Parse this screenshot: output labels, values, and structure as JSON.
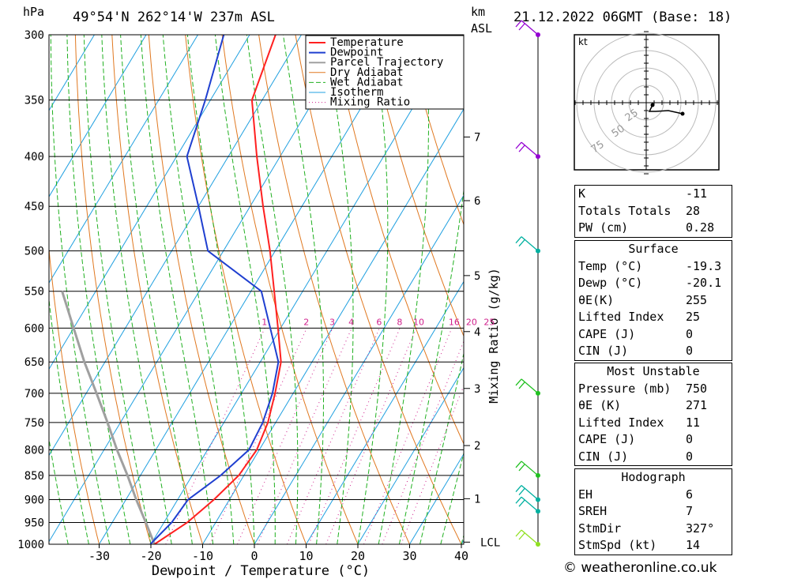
{
  "header": {
    "location": "49°54'N  262°14'W  237m  ASL",
    "datetime": "21.12.2022  06GMT  (Base: 18)",
    "pressure_unit": "hPa",
    "km_unit": "km",
    "asl_label": "ASL"
  },
  "chart_data": {
    "type": "skew-t",
    "xlabel": "Dewpoint / Temperature (°C)",
    "ylabel_right": "Mixing Ratio (g/kg)",
    "x_ticks": [
      -30,
      -20,
      -10,
      0,
      10,
      20,
      30,
      40
    ],
    "pressure_levels": [
      300,
      350,
      400,
      450,
      500,
      550,
      600,
      650,
      700,
      750,
      800,
      850,
      900,
      950,
      1000
    ],
    "km_ticks": [
      {
        "label": "7",
        "p": 382
      },
      {
        "label": "6",
        "p": 444
      },
      {
        "label": "5",
        "p": 530
      },
      {
        "label": "4",
        "p": 605
      },
      {
        "label": "3",
        "p": 692
      },
      {
        "label": "2",
        "p": 792
      },
      {
        "label": "1",
        "p": 898
      },
      {
        "label": "LCL",
        "p": 995
      }
    ],
    "mixing_ratio_labels": [
      "1",
      "2",
      "3",
      "4",
      "6",
      "8",
      "10",
      "16",
      "20",
      "25"
    ],
    "legend": [
      "Temperature",
      "Dewpoint",
      "Parcel Trajectory",
      "Dry Adiabat",
      "Wet Adiabat",
      "Isotherm",
      "Mixing Ratio"
    ],
    "temperature": [
      {
        "p": 1000,
        "t": -19.3
      },
      {
        "p": 950,
        "t": -15.5
      },
      {
        "p": 900,
        "t": -13.0
      },
      {
        "p": 850,
        "t": -11.0
      },
      {
        "p": 800,
        "t": -10.5
      },
      {
        "p": 750,
        "t": -11.5
      },
      {
        "p": 700,
        "t": -13.5
      },
      {
        "p": 650,
        "t": -16.0
      },
      {
        "p": 600,
        "t": -20.5
      },
      {
        "p": 550,
        "t": -25.5
      },
      {
        "p": 500,
        "t": -31.0
      },
      {
        "p": 450,
        "t": -37.5
      },
      {
        "p": 400,
        "t": -44.5
      },
      {
        "p": 350,
        "t": -52.0
      },
      {
        "p": 300,
        "t": -55.0
      }
    ],
    "dewpoint": [
      {
        "p": 1000,
        "t": -20.1
      },
      {
        "p": 950,
        "t": -18.5
      },
      {
        "p": 900,
        "t": -18.0
      },
      {
        "p": 850,
        "t": -14.5
      },
      {
        "p": 800,
        "t": -12.0
      },
      {
        "p": 750,
        "t": -12.5
      },
      {
        "p": 700,
        "t": -14.0
      },
      {
        "p": 650,
        "t": -16.5
      },
      {
        "p": 600,
        "t": -22.0
      },
      {
        "p": 550,
        "t": -28.0
      },
      {
        "p": 500,
        "t": -43.0
      },
      {
        "p": 450,
        "t": -50.0
      },
      {
        "p": 400,
        "t": -58.0
      },
      {
        "p": 350,
        "t": -61.0
      },
      {
        "p": 300,
        "t": -65.0
      }
    ],
    "parcel": [
      {
        "p": 1000,
        "t": -19.3
      },
      {
        "p": 950,
        "t": -23.5
      },
      {
        "p": 900,
        "t": -28.0
      },
      {
        "p": 850,
        "t": -32.5
      },
      {
        "p": 800,
        "t": -37.5
      },
      {
        "p": 750,
        "t": -42.5
      },
      {
        "p": 700,
        "t": -48.0
      },
      {
        "p": 650,
        "t": -54.0
      },
      {
        "p": 600,
        "t": -60.0
      },
      {
        "p": 550,
        "t": -66.5
      }
    ],
    "wind_barbs": [
      {
        "p": 300,
        "color": "#9400d3"
      },
      {
        "p": 400,
        "color": "#9400d3"
      },
      {
        "p": 500,
        "color": "#00b0a0"
      },
      {
        "p": 700,
        "color": "#20c020"
      },
      {
        "p": 850,
        "color": "#20c020"
      },
      {
        "p": 900,
        "color": "#00b0a0"
      },
      {
        "p": 925,
        "color": "#00b0a0"
      },
      {
        "p": 1000,
        "color": "#90e020"
      }
    ],
    "hodograph": {
      "unit": "kt",
      "ring_labels": [
        "25",
        "50",
        "75"
      ]
    }
  },
  "indices": [
    {
      "label": "K",
      "value": "-11"
    },
    {
      "label": "Totals Totals",
      "value": "28"
    },
    {
      "label": "PW (cm)",
      "value": "0.28"
    }
  ],
  "surface": {
    "title": "Surface",
    "rows": [
      {
        "label": "Temp (°C)",
        "value": "-19.3"
      },
      {
        "label": "Dewp (°C)",
        "value": "-20.1"
      },
      {
        "label": "θE(K)",
        "value": "255"
      },
      {
        "label": "Lifted Index",
        "value": "25"
      },
      {
        "label": "CAPE (J)",
        "value": "0"
      },
      {
        "label": "CIN (J)",
        "value": "0"
      }
    ]
  },
  "most_unstable": {
    "title": "Most Unstable",
    "rows": [
      {
        "label": "Pressure (mb)",
        "value": "750"
      },
      {
        "label": "θE (K)",
        "value": "271"
      },
      {
        "label": "Lifted Index",
        "value": "11"
      },
      {
        "label": "CAPE (J)",
        "value": "0"
      },
      {
        "label": "CIN (J)",
        "value": "0"
      }
    ]
  },
  "hodograph_table": {
    "title": "Hodograph",
    "rows": [
      {
        "label": "EH",
        "value": "6"
      },
      {
        "label": "SREH",
        "value": "7"
      },
      {
        "label": "StmDir",
        "value": "327°"
      },
      {
        "label": "StmSpd (kt)",
        "value": "14"
      }
    ]
  },
  "copyright": "© weatheronline.co.uk",
  "colors": {
    "temperature": "#ff2020",
    "dewpoint": "#1f3fd0",
    "parcel": "#a0a0a0",
    "dry_adiabat": "#e07820",
    "wet_adiabat": "#20b020",
    "isotherm": "#20a0e0",
    "mixing_ratio": "#d0208c"
  }
}
